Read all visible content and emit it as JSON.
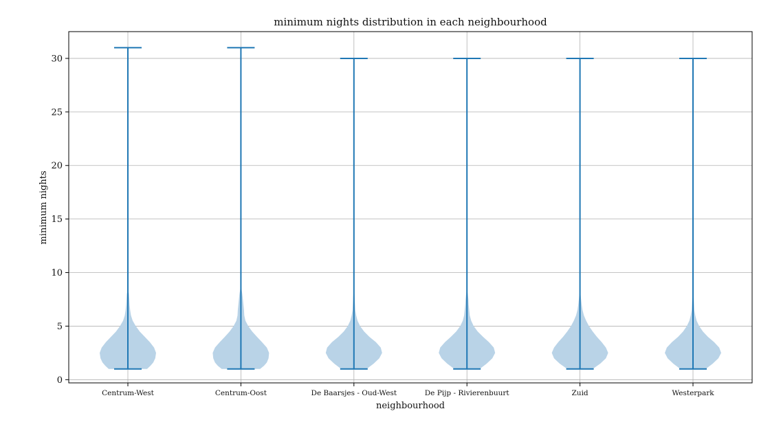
{
  "chart_data": {
    "type": "violin",
    "title": "minimum nights distribution in each neighbourhood",
    "xlabel": "neighbourhood",
    "ylabel": "minimum nights",
    "ylim": [
      -0.3,
      32.5
    ],
    "yticks": [
      0,
      5,
      10,
      15,
      20,
      25,
      30
    ],
    "grid": true,
    "colors": {
      "body": "#b9d3e7",
      "line": "#1f77b4",
      "grid": "#b0b0b0"
    },
    "categories": [
      "Centrum-West",
      "Centrum-Oost",
      "De Baarsjes - Oud-West",
      "De Pijp - Rivierenbuurt",
      "Zuid",
      "Westerpark"
    ],
    "violins": [
      {
        "name": "Centrum-West",
        "min": 1,
        "max": 31,
        "profile": [
          [
            1,
            0.68
          ],
          [
            1.3,
            0.8
          ],
          [
            1.6,
            0.9
          ],
          [
            2,
            0.97
          ],
          [
            2.5,
            1.0
          ],
          [
            3,
            0.93
          ],
          [
            3.5,
            0.78
          ],
          [
            4,
            0.6
          ],
          [
            4.5,
            0.42
          ],
          [
            5,
            0.28
          ],
          [
            5.5,
            0.17
          ],
          [
            6,
            0.11
          ],
          [
            6.5,
            0.08
          ],
          [
            7,
            0.06
          ],
          [
            7.5,
            0.05
          ],
          [
            8,
            0.04
          ],
          [
            8.5,
            0.0
          ]
        ]
      },
      {
        "name": "Centrum-Oost",
        "min": 1,
        "max": 31,
        "profile": [
          [
            1,
            0.68
          ],
          [
            1.3,
            0.82
          ],
          [
            1.6,
            0.92
          ],
          [
            2,
            0.98
          ],
          [
            2.5,
            1.0
          ],
          [
            3,
            0.92
          ],
          [
            3.5,
            0.75
          ],
          [
            4,
            0.57
          ],
          [
            4.5,
            0.4
          ],
          [
            5,
            0.26
          ],
          [
            5.5,
            0.16
          ],
          [
            6,
            0.12
          ],
          [
            6.5,
            0.11
          ],
          [
            7,
            0.09
          ],
          [
            7.5,
            0.07
          ],
          [
            8,
            0.05
          ],
          [
            8.5,
            0.02
          ],
          [
            9,
            0.0
          ]
        ]
      },
      {
        "name": "De Baarsjes - Oud-West",
        "min": 1,
        "max": 30,
        "profile": [
          [
            1,
            0.45
          ],
          [
            1.5,
            0.7
          ],
          [
            2,
            0.9
          ],
          [
            2.5,
            1.0
          ],
          [
            3,
            0.95
          ],
          [
            3.5,
            0.78
          ],
          [
            4,
            0.55
          ],
          [
            4.5,
            0.36
          ],
          [
            5,
            0.22
          ],
          [
            5.5,
            0.13
          ],
          [
            6,
            0.08
          ],
          [
            6.5,
            0.05
          ],
          [
            7,
            0.04
          ],
          [
            7.5,
            0.03
          ],
          [
            8,
            0.02
          ],
          [
            8.5,
            0.0
          ]
        ]
      },
      {
        "name": "De Pijp - Rivierenbuurt",
        "min": 1,
        "max": 30,
        "profile": [
          [
            1,
            0.45
          ],
          [
            1.5,
            0.7
          ],
          [
            2,
            0.9
          ],
          [
            2.5,
            1.0
          ],
          [
            3,
            0.95
          ],
          [
            3.5,
            0.78
          ],
          [
            4,
            0.57
          ],
          [
            4.5,
            0.38
          ],
          [
            5,
            0.24
          ],
          [
            5.5,
            0.15
          ],
          [
            6,
            0.1
          ],
          [
            6.5,
            0.08
          ],
          [
            7,
            0.06
          ],
          [
            7.5,
            0.05
          ],
          [
            8,
            0.03
          ],
          [
            8.5,
            0.0
          ]
        ]
      },
      {
        "name": "Zuid",
        "min": 1,
        "max": 30,
        "profile": [
          [
            1,
            0.45
          ],
          [
            1.5,
            0.72
          ],
          [
            2,
            0.92
          ],
          [
            2.5,
            1.0
          ],
          [
            3,
            0.92
          ],
          [
            3.5,
            0.77
          ],
          [
            4,
            0.6
          ],
          [
            4.5,
            0.45
          ],
          [
            5,
            0.32
          ],
          [
            5.5,
            0.22
          ],
          [
            6,
            0.14
          ],
          [
            6.5,
            0.09
          ],
          [
            7,
            0.06
          ],
          [
            7.5,
            0.04
          ],
          [
            8,
            0.02
          ],
          [
            8.5,
            0.0
          ]
        ]
      },
      {
        "name": "Westerpark",
        "min": 1,
        "max": 30,
        "profile": [
          [
            1,
            0.45
          ],
          [
            1.5,
            0.7
          ],
          [
            2,
            0.9
          ],
          [
            2.5,
            1.0
          ],
          [
            3,
            0.93
          ],
          [
            3.5,
            0.75
          ],
          [
            4,
            0.53
          ],
          [
            4.5,
            0.35
          ],
          [
            5,
            0.22
          ],
          [
            5.5,
            0.13
          ],
          [
            6,
            0.08
          ],
          [
            6.5,
            0.05
          ],
          [
            7,
            0.04
          ],
          [
            7.5,
            0.03
          ],
          [
            8,
            0.02
          ],
          [
            8.5,
            0.0
          ]
        ]
      }
    ]
  }
}
